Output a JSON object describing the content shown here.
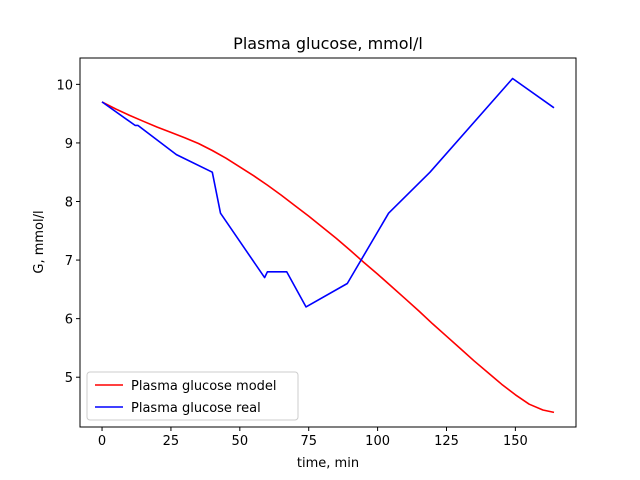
{
  "chart_data": {
    "type": "line",
    "title": "Plasma glucose, mmol/l",
    "xlabel": "time, min",
    "ylabel": "G, mmol/l",
    "xlim": [
      -8,
      172
    ],
    "ylim": [
      4.15,
      10.45
    ],
    "xticks": [
      0,
      25,
      50,
      75,
      100,
      125,
      150
    ],
    "yticks": [
      5,
      6,
      7,
      8,
      9,
      10
    ],
    "grid": false,
    "legend": "lower-left",
    "series": [
      {
        "name": "Plasma glucose model",
        "color": "#ff0000",
        "x": [
          0,
          5,
          10,
          15,
          20,
          25,
          30,
          35,
          40,
          45,
          50,
          55,
          60,
          65,
          70,
          75,
          80,
          85,
          90,
          95,
          100,
          105,
          110,
          115,
          120,
          125,
          130,
          135,
          140,
          145,
          150,
          155,
          160,
          164
        ],
        "y": [
          9.7,
          9.58,
          9.47,
          9.37,
          9.27,
          9.18,
          9.09,
          8.99,
          8.87,
          8.74,
          8.59,
          8.44,
          8.28,
          8.11,
          7.93,
          7.75,
          7.56,
          7.37,
          7.17,
          6.96,
          6.76,
          6.55,
          6.34,
          6.13,
          5.91,
          5.7,
          5.49,
          5.28,
          5.08,
          4.88,
          4.7,
          4.54,
          4.44,
          4.4
        ]
      },
      {
        "name": "Plasma glucose real",
        "color": "#0000ff",
        "x": [
          0,
          12,
          13,
          27,
          40,
          43,
          59,
          60,
          67,
          74,
          89,
          104,
          119,
          149,
          164
        ],
        "y": [
          9.7,
          9.3,
          9.3,
          8.8,
          8.5,
          7.8,
          6.7,
          6.8,
          6.8,
          6.2,
          6.6,
          7.8,
          8.5,
          10.1,
          9.6
        ]
      }
    ]
  }
}
